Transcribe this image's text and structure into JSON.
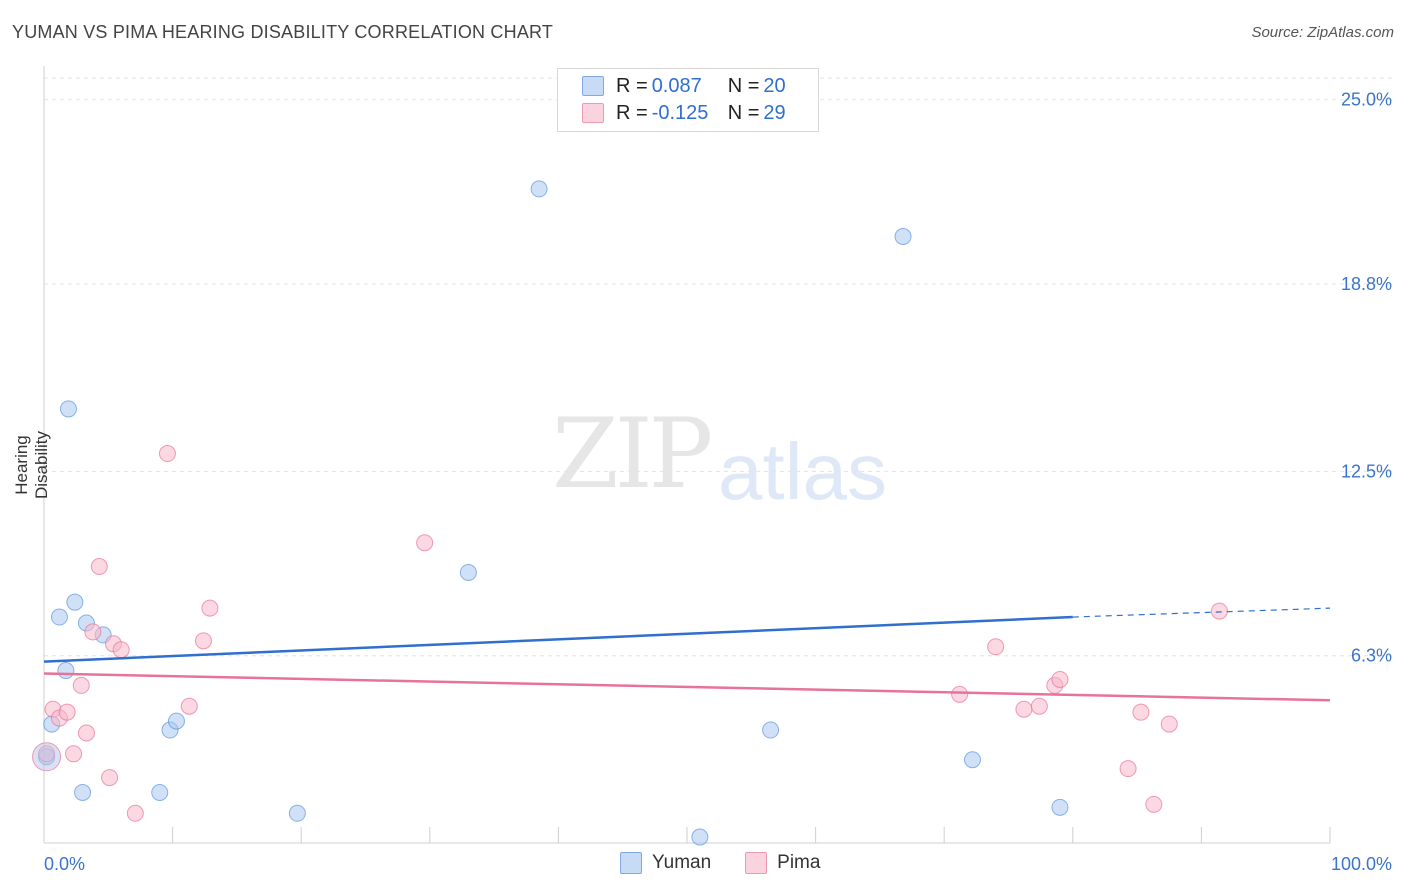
{
  "title": "YUMAN VS PIMA HEARING DISABILITY CORRELATION CHART",
  "source": "Source: ZipAtlas.com",
  "watermark_zip": "ZIP",
  "watermark_atlas": "atlas",
  "legend": {
    "rows": [
      {
        "r_label": "R = ",
        "r_value": "0.087",
        "n_label": "N = ",
        "n_value": "20",
        "color": "#a9c8f0"
      },
      {
        "r_label": "R = ",
        "r_value": "-0.125",
        "n_label": "N = ",
        "n_value": "29",
        "color": "#f7b8ca"
      }
    ]
  },
  "bottom_legend": [
    {
      "label": "Yuman",
      "color": "#a9c8f0"
    },
    {
      "label": "Pima",
      "color": "#f7b8ca"
    }
  ],
  "chart_data": {
    "type": "scatter",
    "ylabel": "Hearing Disability",
    "xlim": [
      0,
      100
    ],
    "ylim": [
      0,
      26
    ],
    "x_tick_labels": [
      "0.0%",
      "100.0%"
    ],
    "y_ticks": [
      6.3,
      12.5,
      18.8,
      25.0
    ],
    "y_tick_labels": [
      "6.3%",
      "12.5%",
      "18.8%",
      "25.0%"
    ],
    "grid": true,
    "series": [
      {
        "name": "Yuman",
        "color": "#5b95dd",
        "fill": "#a9c8f0",
        "points": [
          [
            0.2,
            2.9
          ],
          [
            0.6,
            4.0
          ],
          [
            1.2,
            7.6
          ],
          [
            1.7,
            5.8
          ],
          [
            1.9,
            14.6
          ],
          [
            2.4,
            8.1
          ],
          [
            3.0,
            1.7
          ],
          [
            3.3,
            7.4
          ],
          [
            4.6,
            7.0
          ],
          [
            9.0,
            1.7
          ],
          [
            9.8,
            3.8
          ],
          [
            10.3,
            4.1
          ],
          [
            19.7,
            1.0
          ],
          [
            33.0,
            9.1
          ],
          [
            38.5,
            22.0
          ],
          [
            51.0,
            0.2
          ],
          [
            56.5,
            3.8
          ],
          [
            66.8,
            20.4
          ],
          [
            72.2,
            2.8
          ],
          [
            79.0,
            1.2
          ]
        ],
        "trend": {
          "x0": 0,
          "y0": 6.1,
          "x1": 80,
          "y1": 7.6,
          "dash_x1": 100,
          "dash_y1": 7.9
        }
      },
      {
        "name": "Pima",
        "color": "#e8739a",
        "fill": "#f7b8ca",
        "points": [
          [
            0.2,
            3.0
          ],
          [
            0.7,
            4.5
          ],
          [
            1.2,
            4.2
          ],
          [
            1.8,
            4.4
          ],
          [
            2.3,
            3.0
          ],
          [
            2.9,
            5.3
          ],
          [
            3.3,
            3.7
          ],
          [
            3.8,
            7.1
          ],
          [
            4.3,
            9.3
          ],
          [
            5.1,
            2.2
          ],
          [
            5.4,
            6.7
          ],
          [
            6.0,
            6.5
          ],
          [
            7.1,
            1.0
          ],
          [
            9.6,
            13.1
          ],
          [
            11.3,
            4.6
          ],
          [
            12.4,
            6.8
          ],
          [
            12.9,
            7.9
          ],
          [
            29.6,
            10.1
          ],
          [
            71.2,
            5.0
          ],
          [
            74.0,
            6.6
          ],
          [
            76.2,
            4.5
          ],
          [
            77.4,
            4.6
          ],
          [
            78.6,
            5.3
          ],
          [
            79.0,
            5.5
          ],
          [
            84.3,
            2.5
          ],
          [
            85.3,
            4.4
          ],
          [
            86.3,
            1.3
          ],
          [
            87.5,
            4.0
          ],
          [
            91.4,
            7.8
          ]
        ],
        "trend": {
          "x0": 0,
          "y0": 5.7,
          "x1": 100,
          "y1": 4.8
        }
      }
    ]
  }
}
